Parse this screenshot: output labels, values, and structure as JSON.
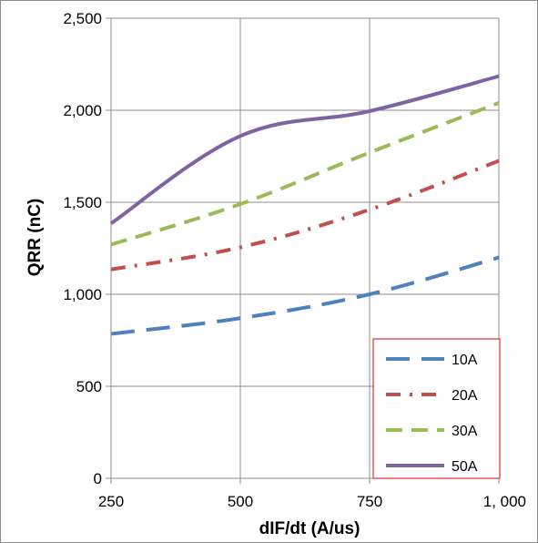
{
  "chart_data": {
    "type": "line",
    "xlabel": "dIF/dt  (A/us)",
    "ylabel": "QRR  (nC)",
    "xlim": [
      250,
      1000
    ],
    "ylim": [
      0,
      2500
    ],
    "x_ticks": [
      "250",
      "500",
      "750",
      "1, 000"
    ],
    "y_ticks": [
      "0",
      "500",
      "1,000",
      "1,500",
      "2,000",
      "2,500"
    ],
    "grid": true,
    "legend_position": "bottom-right",
    "x": [
      250,
      500,
      750,
      1000
    ],
    "series": [
      {
        "name": "10A",
        "values": [
          785,
          870,
          1000,
          1200
        ],
        "color": "#4f81bd",
        "dash": "long-dash"
      },
      {
        "name": "20A",
        "values": [
          1135,
          1255,
          1460,
          1725
        ],
        "color": "#c0504d",
        "dash": "dash-dot"
      },
      {
        "name": "30A",
        "values": [
          1270,
          1490,
          1770,
          2040
        ],
        "color": "#9bbb59",
        "dash": "dash"
      },
      {
        "name": "50A",
        "values": [
          1385,
          1860,
          1995,
          2185
        ],
        "color": "#8064a2",
        "dash": "solid"
      }
    ]
  }
}
